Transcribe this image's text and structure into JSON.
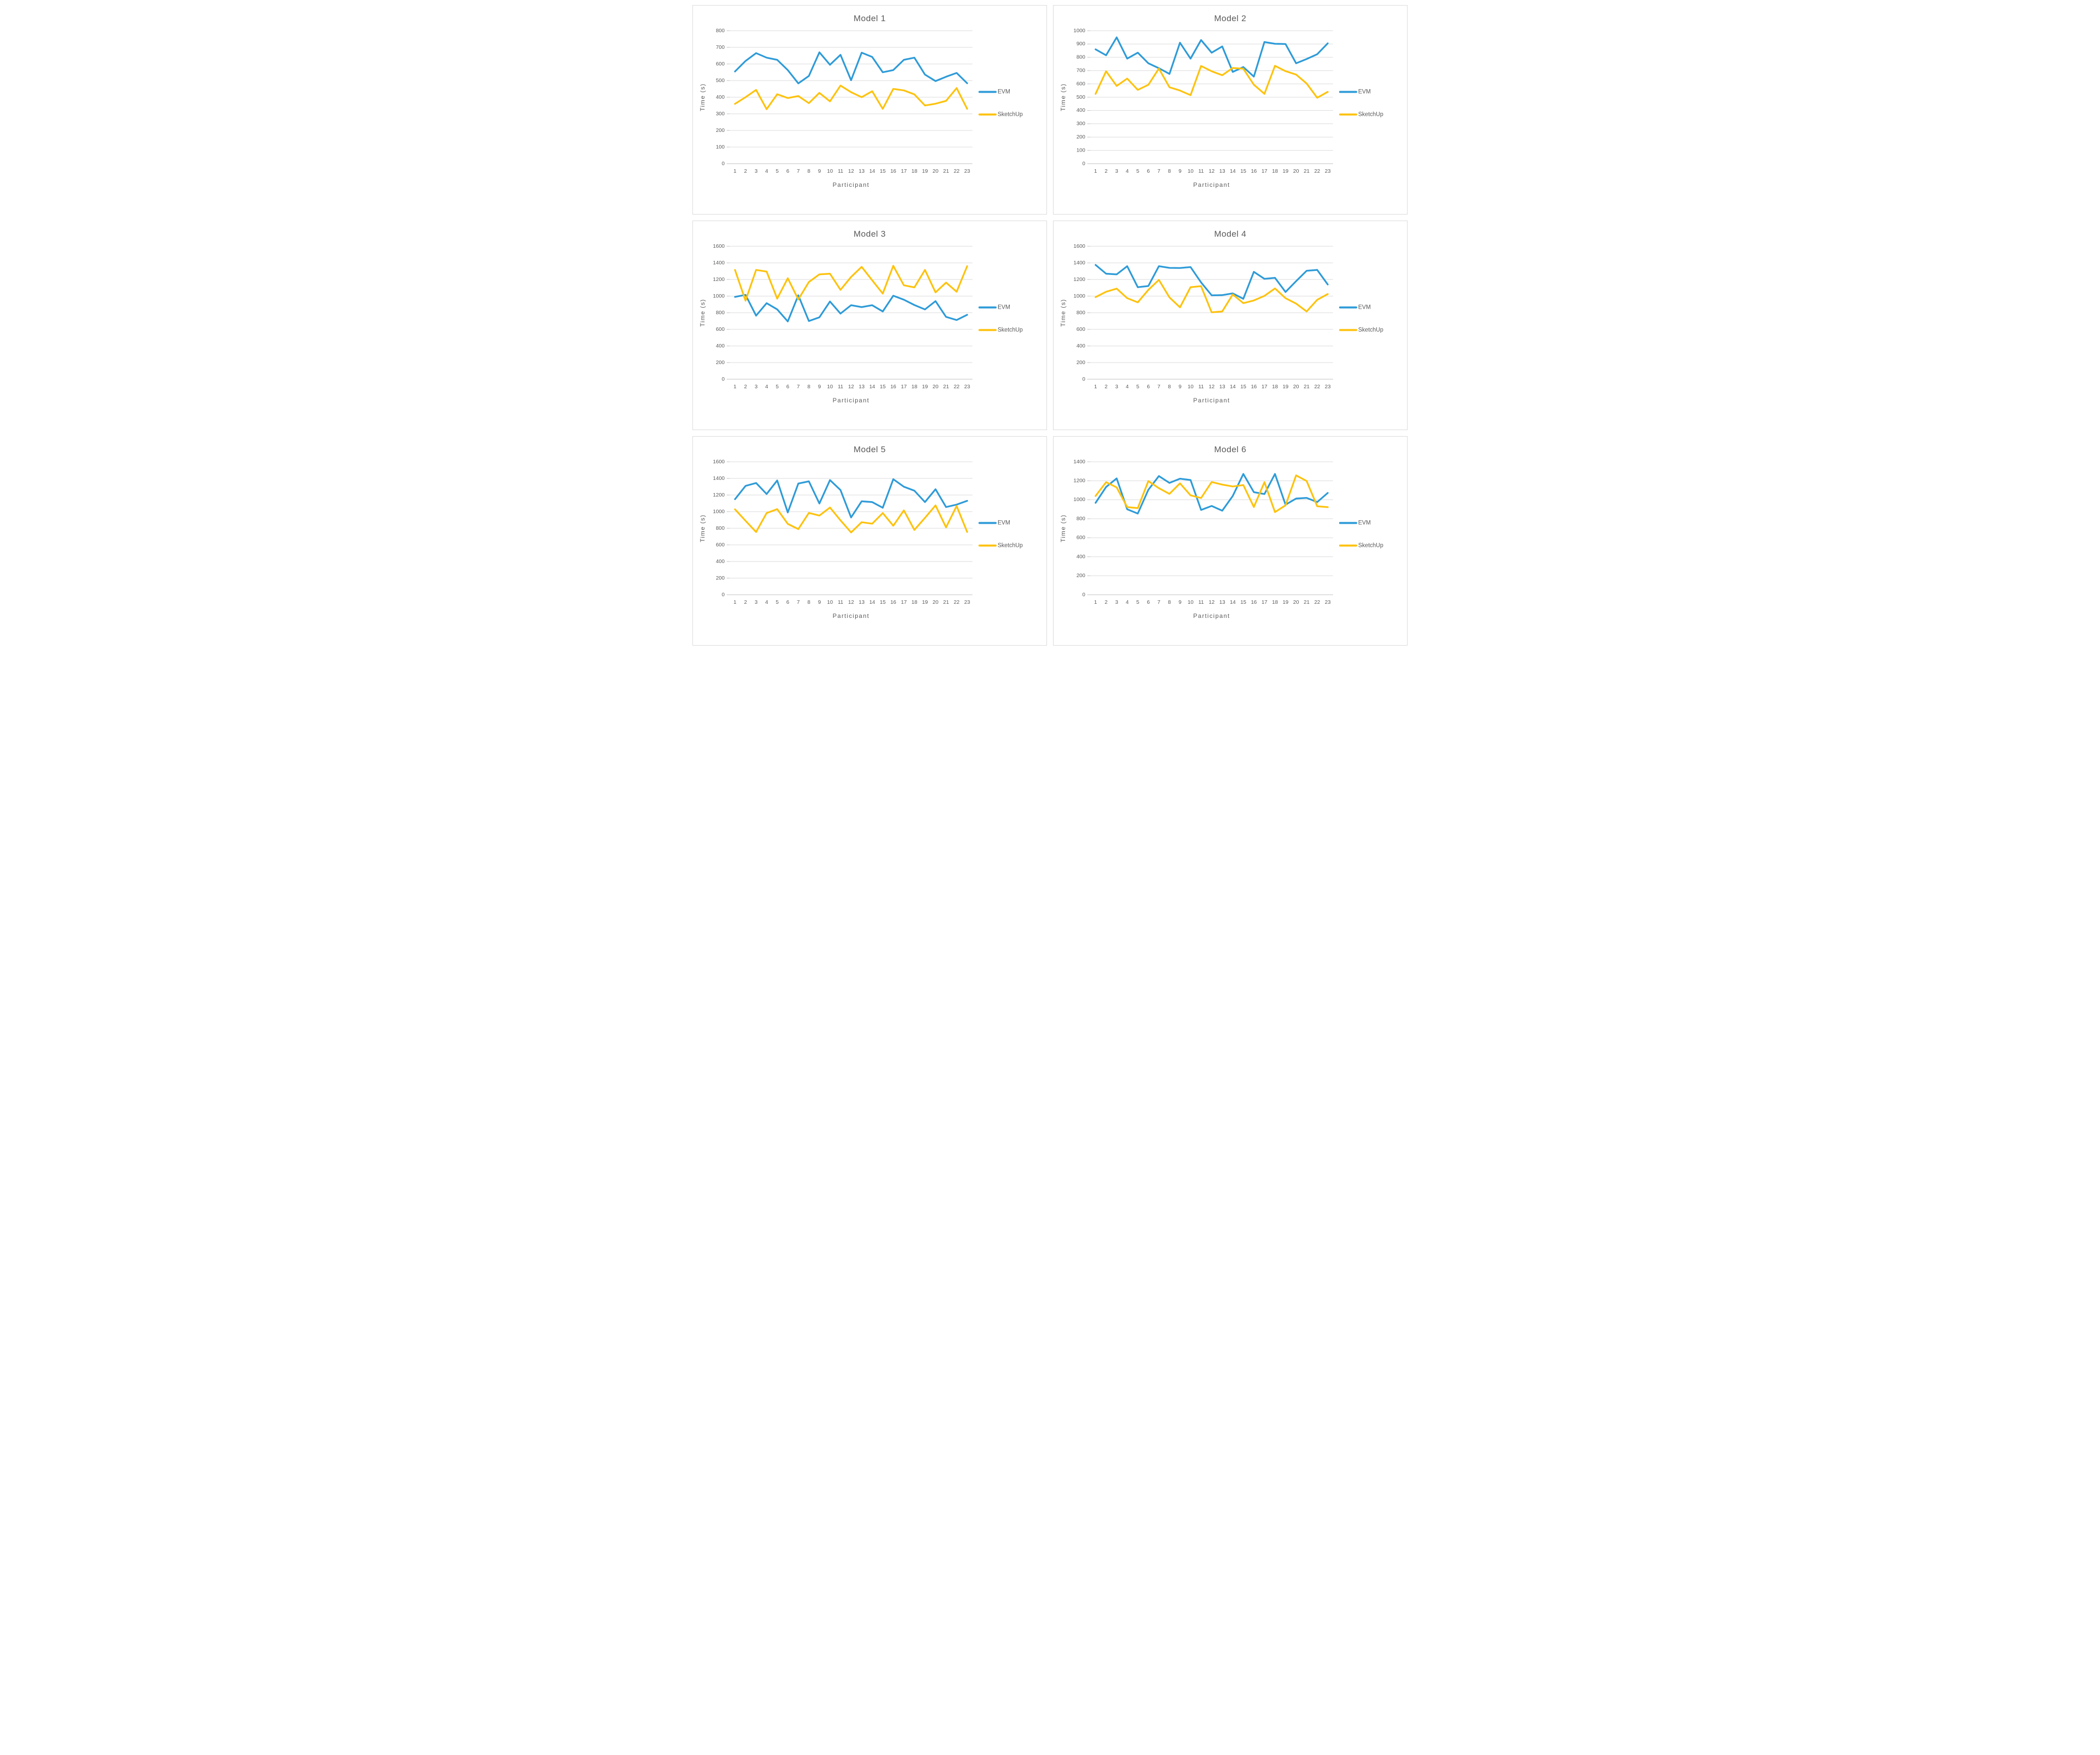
{
  "page": {
    "background": "#ffffff"
  },
  "colors": {
    "evm": "#2e9bd8",
    "sketchup": "#fec20d",
    "gridline": "#d9d9d9",
    "axis_line": "#bfbfbf",
    "text": "#595959",
    "panel_border": "#d9d9d9"
  },
  "participants": [
    1,
    2,
    3,
    4,
    5,
    6,
    7,
    8,
    9,
    10,
    11,
    12,
    13,
    14,
    15,
    16,
    17,
    18,
    19,
    20,
    21,
    22,
    23
  ],
  "chart_data": [
    {
      "type": "line",
      "title": "Model 1",
      "xlabel": "Participant",
      "ylabel": "Time (s)",
      "ylim": [
        0,
        800
      ],
      "ytick_step": 100,
      "grid": true,
      "legend_position": "right",
      "series": [
        {
          "name": "EVM",
          "color": "#2e9bd8",
          "values": [
            555,
            618,
            665,
            638,
            625,
            563,
            483,
            528,
            670,
            595,
            655,
            502,
            668,
            642,
            550,
            563,
            625,
            638,
            536,
            497,
            523,
            546,
            484
          ]
        },
        {
          "name": "SketchUp",
          "color": "#fec20d",
          "values": [
            360,
            400,
            444,
            328,
            418,
            395,
            407,
            364,
            426,
            375,
            470,
            430,
            400,
            436,
            330,
            450,
            441,
            417,
            350,
            361,
            378,
            455,
            330
          ]
        }
      ]
    },
    {
      "type": "line",
      "title": "Model 2",
      "xlabel": "Participant",
      "ylabel": "Time (s)",
      "ylim": [
        0,
        1000
      ],
      "ytick_step": 100,
      "grid": true,
      "legend_position": "right",
      "series": [
        {
          "name": "EVM",
          "color": "#2e9bd8",
          "values": [
            860,
            815,
            950,
            790,
            835,
            755,
            718,
            675,
            910,
            790,
            930,
            835,
            882,
            690,
            727,
            655,
            915,
            902,
            900,
            755,
            787,
            823,
            905
          ]
        },
        {
          "name": "SketchUp",
          "color": "#fec20d",
          "values": [
            525,
            695,
            585,
            640,
            555,
            593,
            715,
            575,
            550,
            515,
            735,
            695,
            665,
            720,
            714,
            594,
            525,
            736,
            696,
            670,
            603,
            496,
            540
          ]
        }
      ]
    },
    {
      "type": "line",
      "title": "Model 3",
      "xlabel": "Participant",
      "ylabel": "Time (s)",
      "ylim": [
        0,
        1600
      ],
      "ytick_step": 200,
      "grid": true,
      "legend_position": "right",
      "series": [
        {
          "name": "EVM",
          "color": "#2e9bd8",
          "values": [
            990,
            1015,
            765,
            915,
            840,
            695,
            1010,
            700,
            745,
            935,
            790,
            890,
            868,
            890,
            815,
            1005,
            957,
            893,
            840,
            940,
            750,
            712,
            775
          ]
        },
        {
          "name": "SketchUp",
          "color": "#fec20d",
          "values": [
            1315,
            945,
            1315,
            1295,
            970,
            1215,
            960,
            1170,
            1262,
            1270,
            1075,
            1230,
            1352,
            1190,
            1030,
            1365,
            1130,
            1105,
            1315,
            1045,
            1163,
            1053,
            1360
          ]
        }
      ]
    },
    {
      "type": "line",
      "title": "Model 4",
      "xlabel": "Participant",
      "ylabel": "Time (s)",
      "ylim": [
        0,
        1600
      ],
      "ytick_step": 200,
      "grid": true,
      "legend_position": "right",
      "series": [
        {
          "name": "EVM",
          "color": "#2e9bd8",
          "values": [
            1375,
            1270,
            1262,
            1360,
            1107,
            1122,
            1360,
            1340,
            1338,
            1350,
            1165,
            1010,
            1012,
            1033,
            968,
            1292,
            1208,
            1220,
            1050,
            1180,
            1305,
            1315,
            1140
          ]
        },
        {
          "name": "SketchUp",
          "color": "#fec20d",
          "values": [
            988,
            1052,
            1090,
            975,
            925,
            1075,
            1195,
            985,
            865,
            1107,
            1120,
            805,
            815,
            1020,
            915,
            948,
            1003,
            1092,
            975,
            910,
            815,
            955,
            1025
          ]
        }
      ]
    },
    {
      "type": "line",
      "title": "Model 5",
      "xlabel": "Participant",
      "ylabel": "Time (s)",
      "ylim": [
        0,
        1600
      ],
      "ytick_step": 200,
      "grid": true,
      "legend_position": "right",
      "series": [
        {
          "name": "EVM",
          "color": "#2e9bd8",
          "values": [
            1150,
            1310,
            1345,
            1212,
            1375,
            990,
            1338,
            1365,
            1098,
            1380,
            1260,
            930,
            1125,
            1115,
            1047,
            1390,
            1300,
            1252,
            1115,
            1270,
            1055,
            1085,
            1130
          ]
        },
        {
          "name": "SketchUp",
          "color": "#fec20d",
          "values": [
            1028,
            890,
            755,
            983,
            1030,
            853,
            790,
            985,
            953,
            1050,
            895,
            750,
            873,
            855,
            983,
            830,
            1015,
            780,
            925,
            1075,
            810,
            1068,
            755
          ]
        }
      ]
    },
    {
      "type": "line",
      "title": "Model 6",
      "xlabel": "Participant",
      "ylabel": "Time (s)",
      "ylim": [
        0,
        1400
      ],
      "ytick_step": 200,
      "grid": true,
      "legend_position": "right",
      "series": [
        {
          "name": "EVM",
          "color": "#2e9bd8",
          "values": [
            968,
            1135,
            1225,
            900,
            855,
            1105,
            1250,
            1178,
            1222,
            1208,
            893,
            935,
            885,
            1040,
            1272,
            1080,
            1060,
            1272,
            948,
            1013,
            1020,
            976,
            1072
          ]
        },
        {
          "name": "SketchUp",
          "color": "#fec20d",
          "values": [
            1040,
            1185,
            1130,
            923,
            912,
            1197,
            1122,
            1062,
            1173,
            1047,
            1018,
            1187,
            1160,
            1140,
            1155,
            924,
            1185,
            870,
            942,
            1257,
            1198,
            932,
            922
          ]
        }
      ]
    }
  ]
}
